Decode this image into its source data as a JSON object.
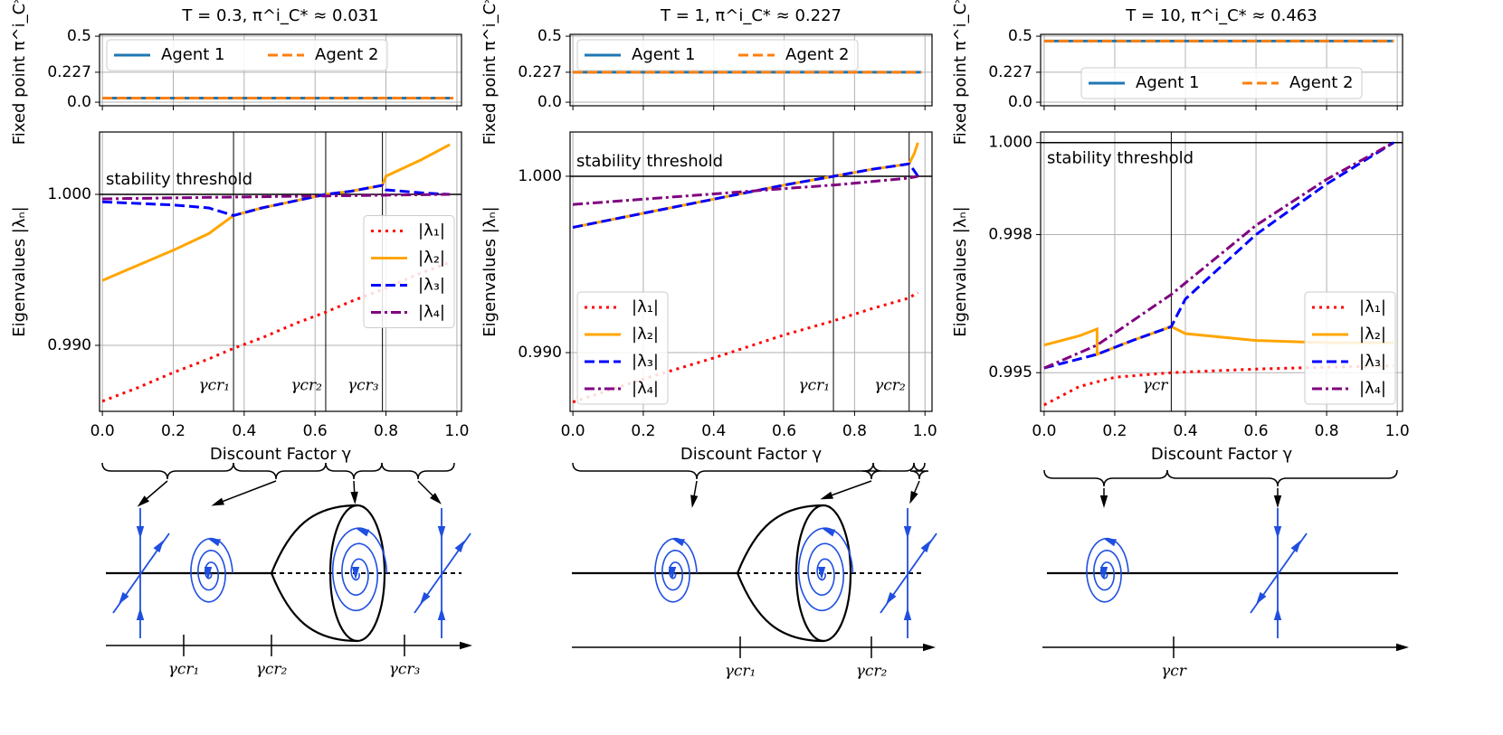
{
  "chart_data": [
    {
      "type": "line",
      "title": "T = 0.3, π^i_C* ≈ 0.031",
      "ylabel": "Fixed point π^i_C*",
      "xlim": [
        -0.008,
        1.013
      ],
      "ylim": [
        -0.027,
        0.514
      ],
      "xticks": [
        0,
        0.2,
        0.4,
        0.6,
        0.8,
        1
      ],
      "yticks": [
        {
          "value": 0,
          "label": "0.0"
        },
        0.227,
        0.5
      ],
      "grid": true,
      "legend": "upper left",
      "series": [
        {
          "name": "Agent 1",
          "color": "#1f77b4",
          "style": "solid",
          "x": [
            0,
            0.99
          ],
          "values": [
            0.031,
            0.031
          ]
        },
        {
          "name": "Agent 2",
          "color": "#ff7f0e",
          "style": "dashed",
          "x": [
            0,
            0.99
          ],
          "values": [
            0.031,
            0.031
          ]
        }
      ]
    },
    {
      "type": "line",
      "xlabel": "Discount Factor γ",
      "ylabel": "Eigenvalues |λₙ|",
      "xlim": [
        -0.008,
        1.013
      ],
      "ylim": [
        0.98563,
        1.00413
      ],
      "xticks": [
        {
          "value": 0,
          "label": "0.0"
        },
        0.2,
        0.4,
        0.6,
        0.8,
        {
          "value": 1,
          "label": "1.0"
        }
      ],
      "yticks": [
        {
          "value": 0.99,
          "label": "0.990"
        },
        {
          "value": 1,
          "label": "1.000"
        }
      ],
      "grid": true,
      "legend": "center right",
      "threshold": {
        "label": "stability threshold",
        "value": 1
      },
      "critical": [
        {
          "label": "γcr₁",
          "value": 0.37
        },
        {
          "label": "γcr₂",
          "value": 0.63
        },
        {
          "label": "γcr₃",
          "value": 0.79
        }
      ],
      "series": [
        {
          "name": "|λ₁|",
          "color": "#ff0000",
          "style": "dotted",
          "x": [
            0,
            0.1,
            0.2,
            0.3,
            0.37,
            0.45,
            0.55,
            0.63,
            0.7,
            0.79,
            0.8,
            0.9,
            0.98
          ],
          "values": [
            0.9863,
            0.9872,
            0.9882,
            0.9891,
            0.9898,
            0.9905,
            0.9915,
            0.9922,
            0.9929,
            0.9937,
            0.9938,
            0.9948,
            0.9955
          ]
        },
        {
          "name": "|λ₂|",
          "color": "#ffa500",
          "style": "solid",
          "x": [
            0,
            0.1,
            0.2,
            0.3,
            0.37,
            0.45,
            0.55,
            0.63,
            0.7,
            0.79,
            0.8,
            0.9,
            0.98
          ],
          "values": [
            0.9943,
            0.9953,
            0.9963,
            0.9974,
            0.9986,
            0.9991,
            0.9996,
            1.0,
            1.0002,
            1.0006,
            1.0012,
            1.0023,
            1.0033
          ]
        },
        {
          "name": "|λ₃|",
          "color": "#0000ff",
          "style": "dashed",
          "x": [
            0,
            0.1,
            0.2,
            0.3,
            0.37,
            0.45,
            0.55,
            0.63,
            0.7,
            0.79,
            0.8,
            0.9,
            0.98
          ],
          "values": [
            0.9995,
            0.9994,
            0.9993,
            0.9991,
            0.9986,
            0.9991,
            0.9996,
            1.0,
            1.0002,
            1.0006,
            1.0003,
            1.0001,
            1.0
          ]
        },
        {
          "name": "|λ₄|",
          "color": "#800080",
          "style": "dashdot",
          "x": [
            0,
            0.3,
            0.63,
            0.98
          ],
          "values": [
            0.9997,
            0.9998,
            0.9999,
            1.0
          ]
        }
      ]
    },
    {
      "type": "line",
      "title": "T = 1, π^i_C* ≈ 0.227",
      "ylabel": "Fixed point π^i_C*",
      "xlim": [
        -0.008,
        1.02
      ],
      "ylim": [
        -0.027,
        0.514
      ],
      "xticks": [
        0,
        0.2,
        0.4,
        0.6,
        0.8,
        1
      ],
      "yticks": [
        {
          "value": 0,
          "label": "0.0"
        },
        0.227,
        0.5
      ],
      "grid": true,
      "legend": "upper left",
      "series": [
        {
          "name": "Agent 1",
          "color": "#1f77b4",
          "style": "solid",
          "x": [
            0,
            0.99
          ],
          "values": [
            0.227,
            0.227
          ]
        },
        {
          "name": "Agent 2",
          "color": "#ff7f0e",
          "style": "dashed",
          "x": [
            0,
            0.99
          ],
          "values": [
            0.227,
            0.227
          ]
        }
      ]
    },
    {
      "type": "line",
      "xlabel": "Discount Factor γ",
      "ylabel": "Eigenvalues |λₙ|",
      "xlim": [
        -0.008,
        1.02
      ],
      "ylim": [
        0.98667,
        1.00251
      ],
      "xticks": [
        {
          "value": 0,
          "label": "0.0"
        },
        0.2,
        0.4,
        0.6,
        0.8,
        {
          "value": 1,
          "label": "1.0"
        }
      ],
      "yticks": [
        {
          "value": 0.99,
          "label": "0.990"
        },
        {
          "value": 1,
          "label": "1.000"
        }
      ],
      "grid": true,
      "legend": "lower left",
      "threshold": {
        "label": "stability threshold",
        "value": 1
      },
      "critical": [
        {
          "label": "γcr₁",
          "value": 0.74
        },
        {
          "label": "γcr₂",
          "value": 0.955
        }
      ],
      "series": [
        {
          "name": "|λ₁|",
          "color": "#ff0000",
          "style": "dotted",
          "x": [
            0,
            0.2,
            0.4,
            0.6,
            0.74,
            0.85,
            0.955,
            0.97,
            0.98
          ],
          "values": [
            0.9872,
            0.9885,
            0.9897,
            0.991,
            0.9918,
            0.9925,
            0.9931,
            0.9933,
            0.9934
          ]
        },
        {
          "name": "|λ₂|",
          "color": "#ffa500",
          "style": "solid",
          "x": [
            0,
            0.2,
            0.4,
            0.6,
            0.74,
            0.85,
            0.955,
            0.97,
            0.98
          ],
          "values": [
            0.9971,
            0.9979,
            0.9987,
            0.9995,
            1.0,
            1.0004,
            1.0007,
            1.0013,
            1.0019
          ]
        },
        {
          "name": "|λ₃|",
          "color": "#0000ff",
          "style": "dashed",
          "x": [
            0,
            0.2,
            0.4,
            0.6,
            0.74,
            0.85,
            0.955,
            0.97,
            0.98
          ],
          "values": [
            0.9971,
            0.9979,
            0.9987,
            0.9995,
            1.0,
            1.0004,
            1.0007,
            1.0003,
            1.0
          ]
        },
        {
          "name": "|λ₄|",
          "color": "#800080",
          "style": "dashdot",
          "x": [
            0,
            0.2,
            0.4,
            0.6,
            0.74,
            0.85,
            0.955,
            0.98
          ],
          "values": [
            0.9984,
            0.9987,
            0.999,
            0.9993,
            0.9995,
            0.9997,
            0.9999,
            1.0
          ]
        }
      ]
    },
    {
      "type": "line",
      "title": "T = 10, π^i_C* ≈ 0.463",
      "ylabel": "Fixed point π^i_C*",
      "xlim": [
        -0.01,
        1.015
      ],
      "ylim": [
        -0.027,
        0.514
      ],
      "xticks": [
        0,
        0.2,
        0.4,
        0.6,
        0.8,
        1
      ],
      "yticks": [
        {
          "value": 0,
          "label": "0.0"
        },
        0.227,
        0.5
      ],
      "grid": true,
      "legend": "lower center",
      "series": [
        {
          "name": "Agent 1",
          "color": "#1f77b4",
          "style": "solid",
          "x": [
            0,
            0.99
          ],
          "values": [
            0.463,
            0.463
          ]
        },
        {
          "name": "Agent 2",
          "color": "#ff7f0e",
          "style": "dashed",
          "x": [
            0,
            0.99
          ],
          "values": [
            0.463,
            0.463
          ]
        }
      ]
    },
    {
      "type": "line",
      "xlabel": "Discount Factor γ",
      "ylabel": "Eigenvalues |λₙ|",
      "xlim": [
        -0.01,
        1.015
      ],
      "ylim": [
        0.99416,
        1.00023
      ],
      "xticks": [
        {
          "value": 0,
          "label": "0.0"
        },
        0.2,
        0.4,
        0.6,
        0.8,
        {
          "value": 1,
          "label": "1.0"
        }
      ],
      "yticks": [
        {
          "value": 0.995,
          "label": "0.995"
        },
        {
          "value": 0.998,
          "label": "0.998"
        },
        {
          "value": 1,
          "label": "1.000"
        }
      ],
      "grid": true,
      "legend": "lower right",
      "threshold": {
        "label": "stability threshold",
        "value": 1
      },
      "critical": [
        {
          "label": "γcr",
          "value": 0.36
        }
      ],
      "series": [
        {
          "name": "|λ₁|",
          "color": "#ff0000",
          "style": "dotted",
          "x": [
            0,
            0.1,
            0.2,
            0.36,
            0.6,
            0.8,
            0.99
          ],
          "values": [
            0.9943,
            0.9947,
            0.9949,
            0.995,
            0.99508,
            0.99512,
            0.99515
          ]
        },
        {
          "name": "|λ₂|",
          "color": "#ffa500",
          "style": "solid",
          "x": [
            0,
            0.1,
            0.15,
            0.15,
            0.25,
            0.36,
            0.4,
            0.6,
            0.8,
            0.99
          ],
          "values": [
            0.9956,
            0.9958,
            0.99595,
            0.9954,
            0.9957,
            0.996,
            0.99585,
            0.9957,
            0.99565,
            0.99565
          ]
        },
        {
          "name": "|λ₃|",
          "color": "#0000ff",
          "style": "dashed",
          "x": [
            0,
            0.15,
            0.25,
            0.36,
            0.4,
            0.6,
            0.8,
            0.99
          ],
          "values": [
            0.9951,
            0.9954,
            0.9957,
            0.996,
            0.9966,
            0.998,
            0.9991,
            1.0
          ]
        },
        {
          "name": "|λ₄|",
          "color": "#800080",
          "style": "dashdot",
          "x": [
            0,
            0.15,
            0.36,
            0.6,
            0.8,
            0.99
          ],
          "values": [
            0.9951,
            0.9956,
            0.9967,
            0.9982,
            0.9992,
            1.0
          ]
        }
      ]
    }
  ],
  "diagrams": [
    {
      "labels": [
        "γcr₁",
        "γcr₂",
        "γcr₃"
      ]
    },
    {
      "labels": [
        "γcr₁",
        "γcr₂"
      ]
    },
    {
      "labels": [
        "γcr"
      ]
    }
  ]
}
